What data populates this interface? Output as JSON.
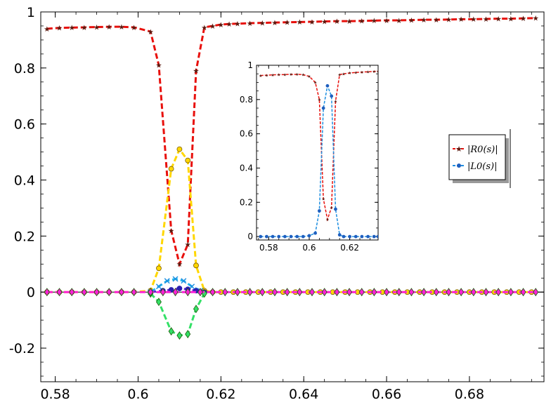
{
  "chart_data": [
    {
      "type": "line",
      "title": "",
      "xlabel": "",
      "ylabel": "",
      "xlim": [
        0.5765,
        0.698
      ],
      "ylim": [
        -0.32,
        1.0
      ],
      "xticks": [
        0.58,
        0.6,
        0.62,
        0.64,
        0.66,
        0.68
      ],
      "xtick_labels": [
        "0.58",
        "0.6",
        "0.62",
        "0.64",
        "0.66",
        "0.68"
      ],
      "yticks": [
        -0.2,
        0,
        0.2,
        0.4,
        0.6,
        0.8,
        1
      ],
      "ytick_labels": [
        "-0.2",
        "0",
        "0.2",
        "0.4",
        "0.6",
        "0.8",
        "1"
      ],
      "zero_line": true,
      "series": [
        {
          "name": "R0",
          "color": "#e8100c",
          "marker": "star",
          "marker_color": "#5a1a10",
          "x": [
            0.578,
            0.581,
            0.584,
            0.587,
            0.59,
            0.593,
            0.596,
            0.599,
            0.603,
            0.605,
            0.608,
            0.61,
            0.612,
            0.614,
            0.616,
            0.618,
            0.62,
            0.622,
            0.624,
            0.627,
            0.63,
            0.633,
            0.636,
            0.639,
            0.642,
            0.645,
            0.648,
            0.651,
            0.654,
            0.657,
            0.66,
            0.663,
            0.666,
            0.669,
            0.672,
            0.675,
            0.678,
            0.681,
            0.684,
            0.687,
            0.69,
            0.693,
            0.696
          ],
          "y": [
            0.94,
            0.943,
            0.944,
            0.945,
            0.946,
            0.947,
            0.947,
            0.945,
            0.93,
            0.81,
            0.22,
            0.1,
            0.17,
            0.79,
            0.945,
            0.95,
            0.955,
            0.957,
            0.958,
            0.96,
            0.961,
            0.962,
            0.963,
            0.964,
            0.965,
            0.966,
            0.967,
            0.967,
            0.968,
            0.969,
            0.97,
            0.97,
            0.971,
            0.972,
            0.972,
            0.973,
            0.974,
            0.974,
            0.975,
            0.976,
            0.976,
            0.977,
            0.978
          ]
        },
        {
          "name": "yellow",
          "color": "#ffd700",
          "marker": "circle",
          "marker_color": "#e8a800",
          "x": [
            0.578,
            0.581,
            0.584,
            0.587,
            0.59,
            0.593,
            0.596,
            0.599,
            0.603,
            0.605,
            0.608,
            0.61,
            0.612,
            0.614,
            0.616,
            0.618,
            0.62,
            0.623,
            0.626,
            0.629,
            0.632,
            0.635,
            0.638,
            0.641,
            0.644,
            0.647,
            0.65,
            0.653,
            0.656,
            0.659,
            0.662,
            0.665,
            0.668,
            0.671,
            0.674,
            0.677,
            0.68,
            0.683,
            0.686,
            0.689,
            0.692,
            0.695
          ],
          "y": [
            0,
            0,
            0,
            0,
            0,
            0,
            0,
            0,
            0.005,
            0.085,
            0.44,
            0.51,
            0.47,
            0.095,
            0.005,
            0,
            0,
            0,
            0,
            0,
            0,
            0,
            0,
            0,
            0,
            0,
            0,
            0,
            0,
            0,
            0,
            0,
            0,
            0,
            0,
            0,
            0,
            0,
            0,
            0,
            0,
            0
          ]
        },
        {
          "name": "cyan",
          "color": "#1fb7ee",
          "marker": "cross",
          "marker_color": "#1f8fe0",
          "x": [
            0.603,
            0.605,
            0.607,
            0.609,
            0.611,
            0.613,
            0.615
          ],
          "y": [
            0,
            0.02,
            0.04,
            0.047,
            0.04,
            0.02,
            0.005
          ]
        },
        {
          "name": "purple",
          "color": "#6a1fd6",
          "marker": "circle",
          "marker_color": "#2a1fb0",
          "x": [
            0.603,
            0.606,
            0.608,
            0.61,
            0.612,
            0.614,
            0.616
          ],
          "y": [
            0,
            0.005,
            0.008,
            0.013,
            0.01,
            0.005,
            0
          ]
        },
        {
          "name": "green",
          "color": "#33e066",
          "marker": "diamond",
          "marker_color": "#3a9a18",
          "x": [
            0.603,
            0.605,
            0.608,
            0.61,
            0.612,
            0.614,
            0.616
          ],
          "y": [
            -0.005,
            -0.035,
            -0.14,
            -0.155,
            -0.15,
            -0.06,
            -0.005
          ]
        },
        {
          "name": "magenta",
          "color": "#ff20d8",
          "marker": "diamond",
          "marker_color": "#2a7a10",
          "x": [
            0.578,
            0.581,
            0.584,
            0.587,
            0.59,
            0.593,
            0.596,
            0.599,
            0.603,
            0.606,
            0.609,
            0.612,
            0.615,
            0.618,
            0.621,
            0.624,
            0.627,
            0.63,
            0.633,
            0.636,
            0.639,
            0.642,
            0.645,
            0.648,
            0.651,
            0.654,
            0.657,
            0.66,
            0.663,
            0.666,
            0.669,
            0.672,
            0.675,
            0.678,
            0.681,
            0.684,
            0.687,
            0.69,
            0.693,
            0.696
          ],
          "y": [
            0,
            0,
            0,
            0,
            0,
            0,
            0,
            0,
            0,
            0,
            0,
            0,
            0,
            0,
            0,
            0,
            0,
            0,
            0,
            0,
            0,
            0,
            0,
            0,
            0,
            0,
            0,
            0,
            0,
            0,
            0,
            0,
            0,
            0,
            0,
            0,
            0,
            0,
            0,
            0
          ]
        }
      ]
    },
    {
      "type": "line",
      "title": "",
      "xlim": [
        0.574,
        0.634
      ],
      "ylim": [
        -0.02,
        1.0
      ],
      "xticks": [
        0.58,
        0.6,
        0.62
      ],
      "xtick_labels": [
        "0.58",
        "0.6",
        "0.62"
      ],
      "yticks": [
        0,
        0.2,
        0.4,
        0.6,
        0.8,
        1
      ],
      "ytick_labels": [
        "0",
        "0.2",
        "0.4",
        "0.6",
        "0.8",
        "1"
      ],
      "series": [
        {
          "name": "|R0(s)|",
          "color": "#e8100c",
          "marker": "star",
          "marker_color": "#5a1a10",
          "x": [
            0.576,
            0.579,
            0.582,
            0.585,
            0.588,
            0.591,
            0.594,
            0.597,
            0.6,
            0.603,
            0.605,
            0.607,
            0.609,
            0.611,
            0.613,
            0.615,
            0.617,
            0.62,
            0.623,
            0.626,
            0.629,
            0.632,
            0.634
          ],
          "y": [
            0.94,
            0.942,
            0.944,
            0.945,
            0.946,
            0.947,
            0.947,
            0.945,
            0.935,
            0.9,
            0.8,
            0.22,
            0.1,
            0.17,
            0.79,
            0.945,
            0.95,
            0.955,
            0.958,
            0.96,
            0.962,
            0.964,
            0.965
          ]
        },
        {
          "name": "|L0(s)|",
          "color": "#1f8fe0",
          "marker": "circle",
          "marker_color": "#1f5fbf",
          "x": [
            0.576,
            0.579,
            0.582,
            0.585,
            0.588,
            0.591,
            0.594,
            0.597,
            0.6,
            0.603,
            0.605,
            0.607,
            0.609,
            0.611,
            0.613,
            0.615,
            0.617,
            0.62,
            0.623,
            0.626,
            0.629,
            0.632,
            0.634
          ],
          "y": [
            0,
            0,
            0,
            0,
            0,
            0,
            0,
            0,
            0.005,
            0.02,
            0.15,
            0.75,
            0.88,
            0.82,
            0.16,
            0.01,
            0,
            0,
            0,
            0,
            0,
            0,
            0
          ]
        }
      ],
      "legend": {
        "position": "right",
        "entries": [
          "|R0(s)|",
          "|L0(s)|"
        ]
      }
    }
  ]
}
